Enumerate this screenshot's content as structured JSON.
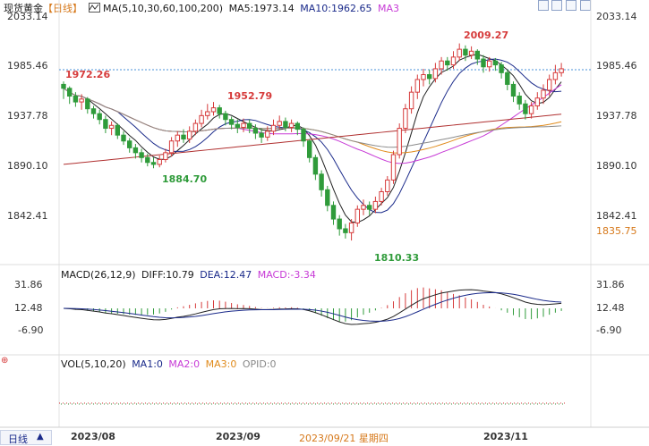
{
  "header": {
    "symbol": "现货黄金",
    "period_tag": "【日线】",
    "ma_caption": "MA(5,10,30,60,100,200)",
    "ma5": "MA5:1973.14",
    "ma10": "MA10:1962.65",
    "ma3": "MA3"
  },
  "colors": {
    "up": "#d63b3b",
    "down": "#2f9b3a",
    "ma5": "#222222",
    "ma10": "#1a2a8a",
    "ma30": "#c73ad6",
    "ma60": "#e08a1a",
    "ma100": "#8a8a8a",
    "ma200": "#b03030",
    "price_line": "#4a90d9"
  },
  "price_axis": {
    "left_ticks": [
      "2033.14",
      "1985.46",
      "1937.78",
      "1890.10",
      "1842.41"
    ],
    "right_ticks": [
      "2033.14",
      "1985.46",
      "1937.78",
      "1890.10",
      "1842.41"
    ],
    "current_price": "1985.46",
    "extra_price": "1835.75",
    "ylim": [
      1800,
      2040
    ]
  },
  "annotations": {
    "high_1972": "1972.26",
    "high_1952": "1952.79",
    "low_1884": "1884.70",
    "low_1810": "1810.33",
    "high_2009": "2009.27"
  },
  "macd": {
    "caption": "MACD(26,12,9)",
    "diff": "DIFF:10.79",
    "dea": "DEA:12.47",
    "macd": "MACD:-3.34",
    "ticks": [
      "31.86",
      "12.48",
      "-6.90"
    ],
    "right_ticks": [
      "31.86",
      "12.48",
      "-6.90"
    ]
  },
  "volume": {
    "caption": "VOL(5,10,20)",
    "ma1": "MA1:0",
    "ma2": "MA2:0",
    "ma3": "MA3:0",
    "opid": "OPID:0"
  },
  "footer": {
    "period_button": "日线",
    "dates": [
      "2023/08",
      "2023/09",
      "2023/09/21 星期四",
      "2023/11"
    ]
  },
  "chart_data": {
    "type": "candlestick",
    "ylim": [
      1800,
      2040
    ],
    "candles": [
      [
        1970,
        1966,
        1973,
        1955
      ],
      [
        1966,
        1958,
        1968,
        1950
      ],
      [
        1958,
        1952,
        1962,
        1947
      ],
      [
        1952,
        1955,
        1960,
        1944
      ],
      [
        1955,
        1945,
        1957,
        1940
      ],
      [
        1945,
        1940,
        1948,
        1935
      ],
      [
        1940,
        1934,
        1944,
        1929
      ],
      [
        1934,
        1925,
        1938,
        1920
      ],
      [
        1925,
        1928,
        1932,
        1918
      ],
      [
        1928,
        1918,
        1930,
        1914
      ],
      [
        1918,
        1912,
        1922,
        1908
      ],
      [
        1912,
        1905,
        1915,
        1900
      ],
      [
        1905,
        1900,
        1909,
        1894
      ],
      [
        1900,
        1895,
        1904,
        1890
      ],
      [
        1895,
        1890,
        1899,
        1886
      ],
      [
        1890,
        1888,
        1895,
        1884
      ],
      [
        1888,
        1893,
        1897,
        1885
      ],
      [
        1893,
        1900,
        1904,
        1890
      ],
      [
        1900,
        1912,
        1916,
        1896
      ],
      [
        1912,
        1918,
        1922,
        1906
      ],
      [
        1918,
        1914,
        1924,
        1910
      ],
      [
        1914,
        1922,
        1927,
        1910
      ],
      [
        1922,
        1930,
        1934,
        1918
      ],
      [
        1930,
        1938,
        1944,
        1926
      ],
      [
        1938,
        1942,
        1950,
        1934
      ],
      [
        1942,
        1946,
        1952,
        1938
      ],
      [
        1946,
        1940,
        1949,
        1935
      ],
      [
        1940,
        1934,
        1943,
        1928
      ],
      [
        1934,
        1929,
        1937,
        1924
      ],
      [
        1929,
        1926,
        1934,
        1920
      ],
      [
        1926,
        1930,
        1935,
        1921
      ],
      [
        1930,
        1925,
        1934,
        1920
      ],
      [
        1925,
        1920,
        1929,
        1914
      ],
      [
        1920,
        1916,
        1925,
        1910
      ],
      [
        1916,
        1922,
        1927,
        1912
      ],
      [
        1922,
        1928,
        1934,
        1918
      ],
      [
        1928,
        1932,
        1938,
        1924
      ],
      [
        1932,
        1926,
        1936,
        1922
      ],
      [
        1926,
        1930,
        1934,
        1921
      ],
      [
        1930,
        1924,
        1932,
        1918
      ],
      [
        1924,
        1912,
        1926,
        1906
      ],
      [
        1912,
        1895,
        1914,
        1890
      ],
      [
        1895,
        1878,
        1898,
        1872
      ],
      [
        1878,
        1862,
        1882,
        1855
      ],
      [
        1862,
        1846,
        1866,
        1840
      ],
      [
        1846,
        1832,
        1850,
        1826
      ],
      [
        1832,
        1822,
        1836,
        1815
      ],
      [
        1822,
        1818,
        1827,
        1812
      ],
      [
        1818,
        1828,
        1832,
        1810
      ],
      [
        1828,
        1842,
        1846,
        1824
      ],
      [
        1842,
        1846,
        1852,
        1836
      ],
      [
        1846,
        1842,
        1850,
        1836
      ],
      [
        1842,
        1850,
        1855,
        1838
      ],
      [
        1850,
        1860,
        1864,
        1846
      ],
      [
        1860,
        1872,
        1876,
        1856
      ],
      [
        1872,
        1898,
        1902,
        1868
      ],
      [
        1898,
        1925,
        1930,
        1894
      ],
      [
        1925,
        1945,
        1950,
        1920
      ],
      [
        1945,
        1962,
        1968,
        1940
      ],
      [
        1962,
        1975,
        1980,
        1955
      ],
      [
        1975,
        1980,
        1986,
        1968
      ],
      [
        1980,
        1976,
        1985,
        1970
      ],
      [
        1976,
        1986,
        1992,
        1972
      ],
      [
        1986,
        1994,
        1998,
        1980
      ],
      [
        1994,
        1990,
        1998,
        1984
      ],
      [
        1990,
        1998,
        2004,
        1986
      ],
      [
        1998,
        2006,
        2012,
        1994
      ],
      [
        2006,
        2000,
        2010,
        1994
      ],
      [
        2000,
        2004,
        2009,
        1996
      ],
      [
        2004,
        1996,
        2006,
        1990
      ],
      [
        1996,
        1988,
        2000,
        1982
      ],
      [
        1988,
        1994,
        1998,
        1983
      ],
      [
        1994,
        1990,
        1997,
        1984
      ],
      [
        1990,
        1982,
        1993,
        1976
      ],
      [
        1982,
        1970,
        1985,
        1964
      ],
      [
        1970,
        1958,
        1973,
        1952
      ],
      [
        1958,
        1950,
        1962,
        1944
      ],
      [
        1950,
        1940,
        1954,
        1934
      ],
      [
        1940,
        1948,
        1952,
        1935
      ],
      [
        1948,
        1956,
        1962,
        1944
      ],
      [
        1956,
        1964,
        1970,
        1950
      ],
      [
        1964,
        1975,
        1980,
        1958
      ],
      [
        1975,
        1982,
        1990,
        1970
      ],
      [
        1982,
        1986,
        1992,
        1978
      ]
    ]
  }
}
